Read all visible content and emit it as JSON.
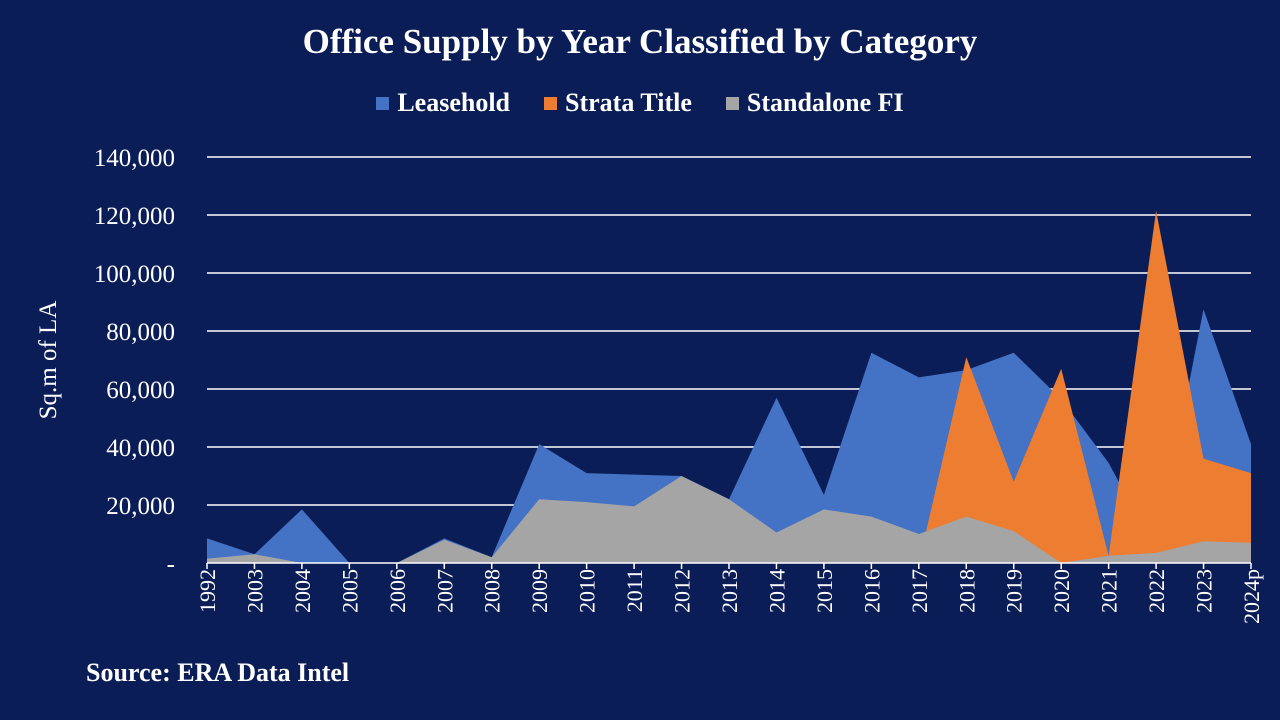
{
  "chart_data": {
    "type": "area",
    "title": "Office Supply  by Year Classified by Category",
    "xlabel": "",
    "ylabel": "Sq.m of LA",
    "ylim": [
      0,
      140000
    ],
    "y_ticks": [
      0,
      20000,
      40000,
      60000,
      80000,
      100000,
      120000,
      140000
    ],
    "y_tick_labels": [
      "-",
      "20,000",
      "40,000",
      "60,000",
      "80,000",
      "100,000",
      "120,000",
      "140,000"
    ],
    "categories": [
      "1992",
      "2003",
      "2004",
      "2005",
      "2006",
      "2007",
      "2008",
      "2009",
      "2010",
      "2011",
      "2012",
      "2013",
      "2014",
      "2015",
      "2016",
      "2017",
      "2018",
      "2019",
      "2020",
      "2021",
      "2022",
      "2023",
      "2024p"
    ],
    "series": [
      {
        "name": "Leasehold",
        "color": "#4472c4",
        "values": [
          8500,
          3000,
          18500,
          0,
          0,
          8500,
          2000,
          41000,
          31000,
          30500,
          30000,
          22000,
          57000,
          23500,
          72500,
          64000,
          66500,
          72500,
          56500,
          34500,
          4000,
          87500,
          41000
        ]
      },
      {
        "name": "Strata Title",
        "color": "#ed7d31",
        "values": [
          0,
          0,
          0,
          0,
          0,
          0,
          0,
          0,
          0,
          0,
          0,
          0,
          0,
          0,
          0,
          0,
          71000,
          28000,
          67000,
          2500,
          121500,
          36000,
          31000
        ]
      },
      {
        "name": "Standalone FI",
        "color": "#a5a5a5",
        "values": [
          1500,
          3000,
          0,
          0,
          0,
          8000,
          2000,
          22000,
          21000,
          19500,
          30000,
          22000,
          10500,
          18500,
          16000,
          10000,
          16000,
          11000,
          0,
          2500,
          3500,
          7500,
          7000
        ]
      }
    ]
  },
  "source": "Source: ERA Data Intel"
}
